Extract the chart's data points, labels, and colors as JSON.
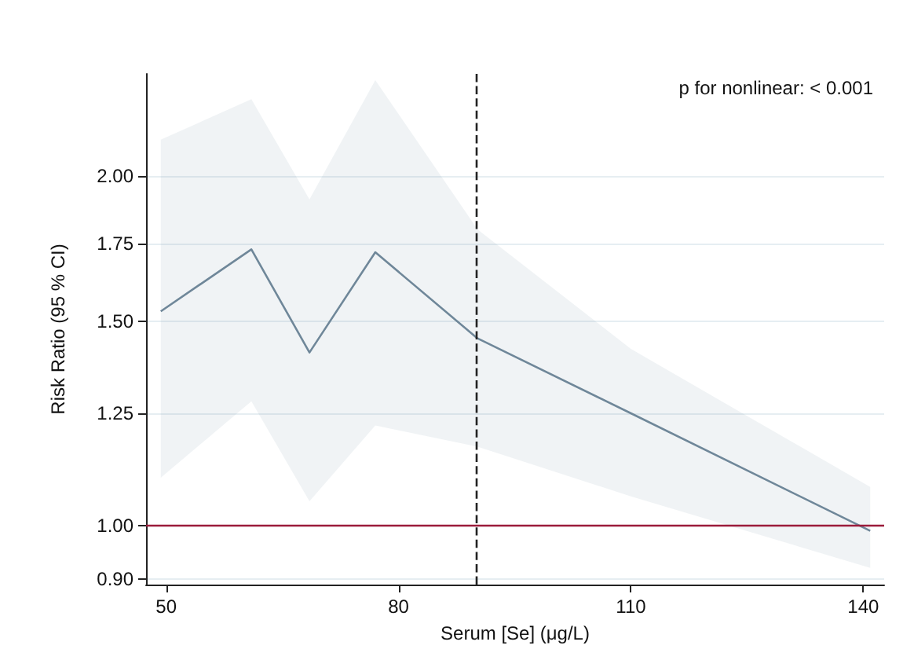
{
  "chart_data": {
    "type": "line",
    "xlabel": "Serum [Se] (μg/L)",
    "ylabel": "Risk Ratio (95 % CI)",
    "log": "y",
    "grid": "y",
    "marker": "none",
    "xlim": [
      47.4,
      142.7
    ],
    "xticks": [
      50,
      80,
      110,
      140
    ],
    "ylim": [
      0.89,
      2.45
    ],
    "yticks": [
      {
        "value": 0.9,
        "label": "0.90"
      },
      {
        "value": 1,
        "label": "1.00"
      },
      {
        "value": 1.25,
        "label": "1.25"
      },
      {
        "value": 1.5,
        "label": "1.50"
      },
      {
        "value": 1.75,
        "label": "1.75"
      },
      {
        "value": 2,
        "label": "2.00"
      }
    ],
    "series": [
      {
        "color": "#6f8799",
        "x": [
          49.3,
          61,
          68.5,
          77,
          90.2,
          110,
          140.9
        ],
        "values": [
          1.53,
          1.73,
          1.41,
          1.72,
          1.45,
          1.25,
          0.99
        ],
        "lower": [
          1.1,
          1.28,
          1.05,
          1.22,
          1.17,
          1.06,
          0.92
        ],
        "upper": [
          2.15,
          2.33,
          1.91,
          2.42,
          1.8,
          1.42,
          1.08
        ]
      }
    ],
    "ref_lines": [
      {
        "axis": "y",
        "value": 1,
        "color": "#9b1b3b",
        "line_style": "solid"
      },
      {
        "axis": "x",
        "value": 90,
        "color": "#222222",
        "line_style": "dashed"
      }
    ],
    "annotations": [
      "p for nonlinear: < 0.001"
    ]
  }
}
